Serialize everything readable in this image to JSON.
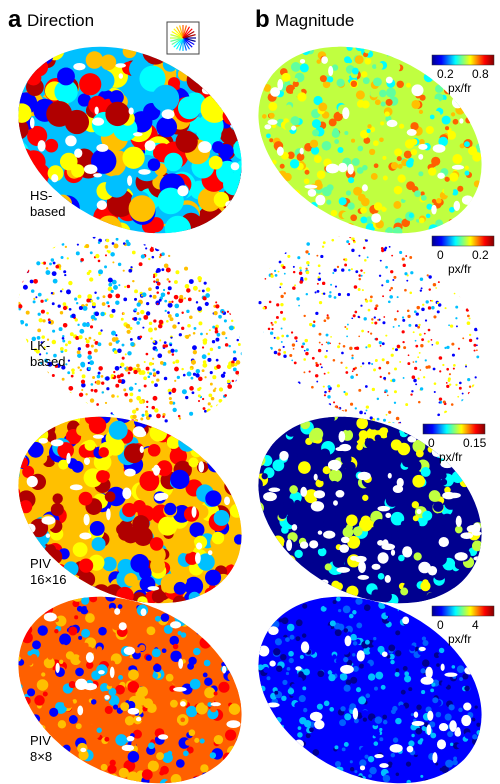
{
  "panels": [
    {
      "letter": "a",
      "title": "Direction"
    },
    {
      "letter": "b",
      "title": "Magnitude"
    }
  ],
  "rows": [
    {
      "label": [
        "HS-",
        "based"
      ],
      "colorbar": {
        "ticks": [
          "0.2",
          "0.8"
        ],
        "unit": "px/fr"
      }
    },
    {
      "label": [
        "LK-",
        "based"
      ],
      "colorbar": {
        "ticks": [
          "0",
          "0.2"
        ],
        "unit": "px/fr"
      }
    },
    {
      "label": [
        "PIV",
        "16×16"
      ],
      "colorbar": {
        "ticks": [
          "0",
          "0.15"
        ],
        "unit": "px/fr"
      }
    },
    {
      "label": [
        "PIV",
        "8×8"
      ],
      "colorbar": {
        "ticks": [
          "0",
          "4"
        ],
        "unit": "px/fr"
      }
    }
  ]
}
